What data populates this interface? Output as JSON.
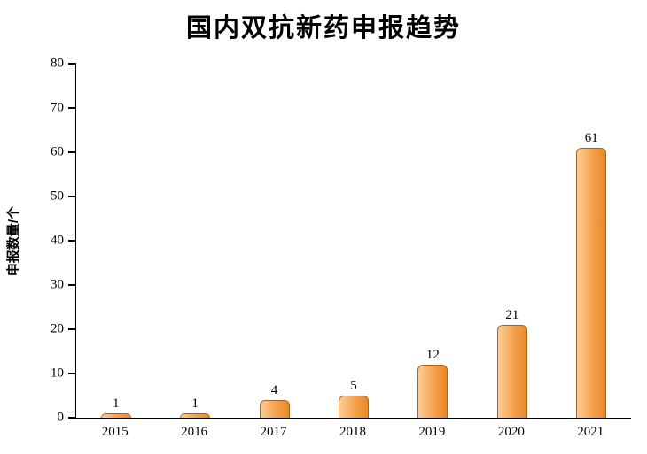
{
  "chart_data": {
    "type": "bar",
    "title": "国内双抗新药申报趋势",
    "ylabel": "申报数量/个",
    "xlabel": "",
    "categories": [
      "2015",
      "2016",
      "2017",
      "2018",
      "2019",
      "2020",
      "2021"
    ],
    "values": [
      1,
      1,
      4,
      5,
      12,
      21,
      61
    ],
    "ylim": [
      0,
      80
    ],
    "yticks": [
      0,
      10,
      20,
      30,
      40,
      50,
      60,
      70,
      80
    ],
    "grid": false,
    "legend": "none",
    "data_labels": true,
    "bar_color_light": "#FCCE96",
    "bar_color": "#F4A14C",
    "bar_color_dark": "#E8892B",
    "bar_border_color": "#A9631C",
    "axis_color": "#000000",
    "text_color": "#000000"
  }
}
